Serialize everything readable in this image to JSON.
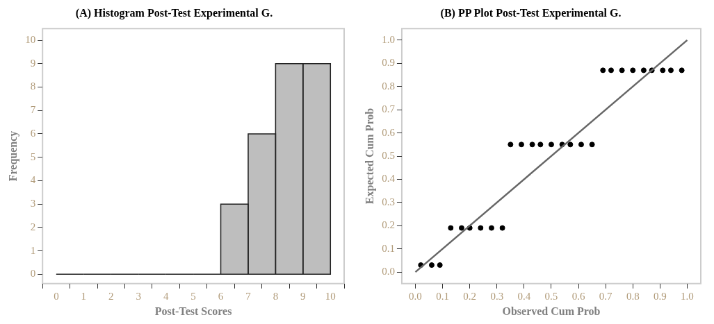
{
  "chart_data": [
    {
      "type": "histogram",
      "title": "(A) Histogram Post-Test Experimental G.",
      "xlabel": "Post-Test Scores",
      "ylabel": "Frequency",
      "bins": [
        0,
        1,
        2,
        3,
        4,
        5,
        6,
        7,
        8,
        9,
        10
      ],
      "values": [
        0,
        0,
        0,
        0,
        0,
        0,
        3,
        6,
        9,
        9
      ],
      "color": "#bebebe",
      "xlim": [
        -0.5,
        10.5
      ],
      "ylim": [
        -0.4,
        10.5
      ],
      "xticks": [
        0,
        1,
        2,
        3,
        4,
        5,
        6,
        7,
        8,
        9,
        10
      ],
      "yticks": [
        0,
        1,
        2,
        3,
        4,
        5,
        6,
        7,
        8,
        9,
        10
      ],
      "grid": false,
      "legend": false
    },
    {
      "type": "scatter",
      "title": "(B) PP Plot Post-Test Experimental G.",
      "xlabel": "Observed Cum Prob",
      "ylabel": "Expected Cum Prob",
      "xlim": [
        -0.05,
        1.05
      ],
      "ylim": [
        -0.05,
        1.05
      ],
      "xticks": [
        {
          "value": 0,
          "label": "0.0"
        },
        0.1,
        0.2,
        0.3,
        0.4,
        0.5,
        0.6,
        0.7,
        0.8,
        0.9,
        {
          "value": 1,
          "label": "1.0"
        }
      ],
      "yticks": [
        {
          "value": 0,
          "label": "0.0"
        },
        0.1,
        0.2,
        0.3,
        0.4,
        0.5,
        0.6,
        0.7,
        0.8,
        0.9,
        {
          "value": 1,
          "label": "1.0"
        }
      ],
      "grid": false,
      "legend": false,
      "series": [
        {
          "type": "line",
          "color": "#666666",
          "marker": "none",
          "x": [
            0,
            1
          ],
          "values": [
            0,
            1
          ]
        },
        {
          "type": "scatter",
          "color": "#000000",
          "marker": "circle",
          "x": [
            0.02,
            0.06,
            0.09,
            0.13,
            0.17,
            0.2,
            0.24,
            0.28,
            0.32,
            0.35,
            0.39,
            0.43,
            0.46,
            0.5,
            0.54,
            0.57,
            0.61,
            0.65,
            0.69,
            0.72,
            0.76,
            0.8,
            0.84,
            0.87,
            0.91,
            0.94,
            0.98
          ],
          "values": [
            0.03,
            0.03,
            0.03,
            0.19,
            0.19,
            0.19,
            0.19,
            0.19,
            0.19,
            0.55,
            0.55,
            0.55,
            0.55,
            0.55,
            0.55,
            0.55,
            0.55,
            0.55,
            0.87,
            0.87,
            0.87,
            0.87,
            0.87,
            0.87,
            0.87,
            0.87,
            0.87
          ]
        }
      ]
    }
  ]
}
